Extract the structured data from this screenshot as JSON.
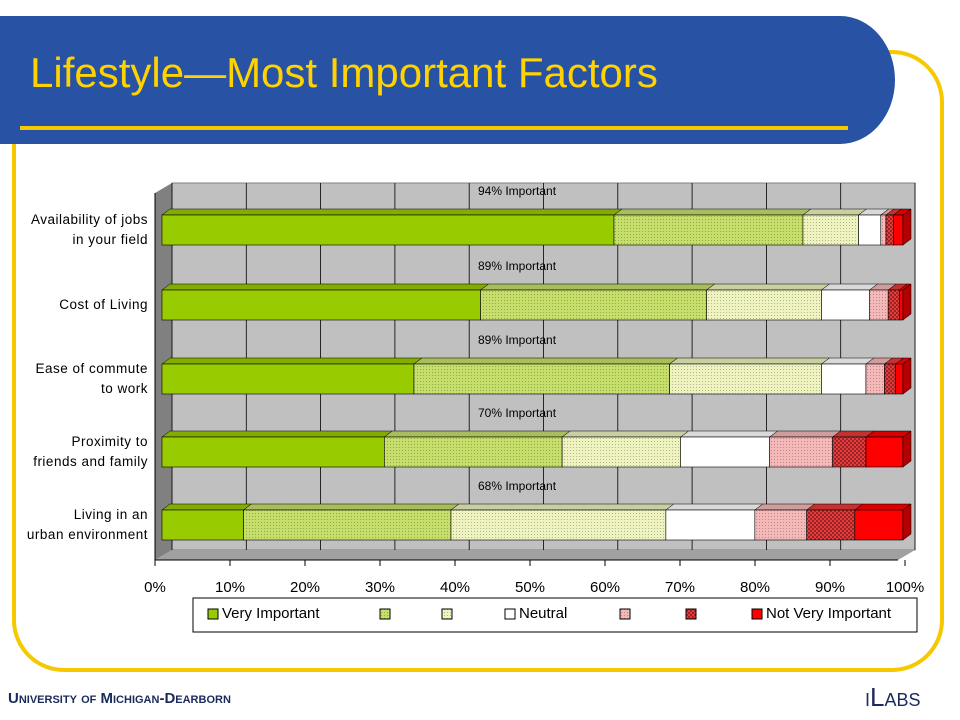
{
  "footer": {
    "university": "University of Michigan-Dearborn",
    "lab": "iLabs"
  },
  "chart_data": {
    "type": "stacked-bar-horizontal-3d",
    "title": "Lifestyle—Most Important Factors",
    "categories": [
      "Availability of jobs\nin your field",
      "Cost of Living",
      "Ease of commute\nto work",
      "Proximity to\nfriends and family",
      "Living in an\nurban environment"
    ],
    "series": [
      {
        "name": "Very Important",
        "color": "#99cc00",
        "pattern": "none",
        "values": [
          61,
          43,
          34,
          30,
          11
        ]
      },
      {
        "name": null,
        "color": "#c6df6a",
        "pattern": "dots",
        "values": [
          25.5,
          30.5,
          34.5,
          24,
          28
        ]
      },
      {
        "name": null,
        "color": "#eef3bf",
        "pattern": "dots",
        "values": [
          7.5,
          15.5,
          20.5,
          16,
          29
        ]
      },
      {
        "name": "Neutral",
        "color": "#ffffff",
        "pattern": "none",
        "values": [
          3,
          6.5,
          6,
          12,
          12
        ]
      },
      {
        "name": null,
        "color": "#f5b8b8",
        "pattern": "dots",
        "values": [
          0.7,
          2.5,
          2.5,
          8.5,
          7
        ]
      },
      {
        "name": null,
        "color": "#e83a3a",
        "pattern": "checker",
        "values": [
          1,
          1.5,
          1.5,
          4.5,
          6.5
        ]
      },
      {
        "name": "Not Very Important",
        "color": "#ff0000",
        "pattern": "none",
        "values": [
          1.3,
          0.5,
          1,
          5,
          6.5
        ]
      }
    ],
    "annotations": [
      "94% Important",
      "89% Important",
      "89% Important",
      "70% Important",
      "68% Important"
    ],
    "xlim": [
      0,
      100
    ],
    "xticks": [
      {
        "value": 0,
        "label": "0%"
      },
      {
        "value": 10,
        "label": "10%"
      },
      {
        "value": 20,
        "label": "20%"
      },
      {
        "value": 30,
        "label": "30%"
      },
      {
        "value": 40,
        "label": "40%"
      },
      {
        "value": 50,
        "label": "50%"
      },
      {
        "value": 60,
        "label": "60%"
      },
      {
        "value": 70,
        "label": "70%"
      },
      {
        "value": 80,
        "label": "80%"
      },
      {
        "value": 90,
        "label": "90%"
      },
      {
        "value": 100,
        "label": "100%"
      }
    ],
    "grid": true,
    "legend": "bottom"
  }
}
